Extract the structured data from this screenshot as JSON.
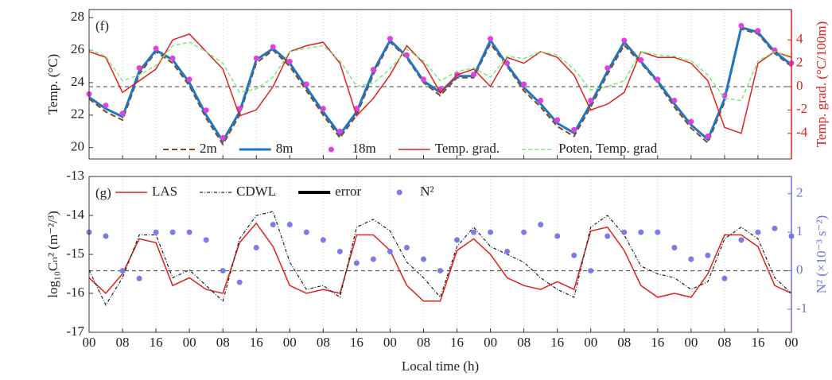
{
  "chart_data": [
    {
      "type": "line",
      "panel_label": "(f)",
      "ylabel": "Temp. (°C)",
      "y2label": "Temp. grad. (°C/100m)",
      "xlim": [
        0,
        168
      ],
      "xticks": [
        0,
        8,
        16,
        24,
        32,
        40,
        48,
        56,
        64,
        72,
        80,
        88,
        96,
        104,
        112,
        120,
        128,
        136,
        144,
        152,
        160,
        168
      ],
      "ylim": [
        19.3,
        28.5
      ],
      "yticks": [
        20,
        22,
        24,
        26,
        28
      ],
      "y2lim": [
        -6.2,
        6.6
      ],
      "y2ticks": [
        -4,
        -2,
        0,
        2,
        4
      ],
      "y2color": "#e0201b",
      "reference_line": {
        "axis": "y2",
        "value": 0
      },
      "grid": true,
      "legend_position": "lower center",
      "x": [
        0,
        4,
        8,
        12,
        16,
        20,
        24,
        28,
        32,
        36,
        40,
        44,
        48,
        52,
        56,
        60,
        64,
        68,
        72,
        76,
        80,
        84,
        88,
        92,
        96,
        100,
        104,
        108,
        112,
        116,
        120,
        124,
        128,
        132,
        136,
        140,
        144,
        148,
        152,
        156,
        160,
        164,
        168
      ],
      "series": [
        {
          "name": "2m",
          "color": "#8b4513",
          "dash": "7,4",
          "width": 2,
          "values": [
            23.0,
            22.2,
            21.7,
            24.5,
            25.9,
            25.2,
            23.8,
            21.8,
            20.2,
            22.0,
            25.2,
            26.0,
            25.0,
            23.5,
            22.0,
            20.6,
            22.0,
            24.5,
            26.5,
            25.5,
            24.0,
            23.2,
            24.3,
            24.3,
            26.4,
            25.0,
            23.5,
            22.5,
            21.3,
            20.7,
            22.5,
            24.5,
            26.3,
            25.2,
            24.0,
            22.5,
            21.2,
            20.3,
            22.8,
            27.3,
            27.0,
            25.8,
            25.0
          ]
        },
        {
          "name": "8m",
          "color": "#1f77c4",
          "width": 3,
          "values": [
            23.1,
            22.4,
            21.9,
            24.7,
            26.0,
            25.4,
            24.0,
            22.0,
            20.4,
            22.2,
            25.4,
            26.1,
            25.2,
            23.7,
            22.2,
            20.8,
            22.2,
            24.7,
            26.6,
            25.6,
            24.1,
            23.4,
            24.4,
            24.4,
            26.6,
            25.1,
            23.7,
            22.7,
            21.5,
            20.9,
            22.7,
            24.7,
            26.5,
            25.3,
            24.1,
            22.7,
            21.4,
            20.5,
            23.0,
            27.4,
            27.1,
            25.9,
            25.1
          ]
        },
        {
          "name": "18m",
          "color": "#e040e0",
          "marker": true,
          "values": [
            23.3,
            22.6,
            22.1,
            24.9,
            26.1,
            25.5,
            24.2,
            22.3,
            20.6,
            22.4,
            25.5,
            26.2,
            25.3,
            23.9,
            22.4,
            21.0,
            22.4,
            24.8,
            26.7,
            25.7,
            24.2,
            23.6,
            24.5,
            24.5,
            26.7,
            25.2,
            23.9,
            22.9,
            21.7,
            21.1,
            22.9,
            24.9,
            26.6,
            25.4,
            24.2,
            22.9,
            21.6,
            20.7,
            23.2,
            27.5,
            27.2,
            26.0,
            25.2
          ]
        },
        {
          "name": "Temp. grad.",
          "color": "#e0201b",
          "width": 1.5,
          "axis": "y2",
          "values": [
            3.0,
            2.5,
            -0.5,
            0.5,
            1.5,
            4.0,
            4.5,
            3.0,
            1.5,
            -2.5,
            -2.0,
            0.0,
            3.0,
            3.5,
            3.8,
            2.0,
            -2.5,
            -1.0,
            1.0,
            3.5,
            2.0,
            -0.5,
            1.0,
            1.5,
            0.0,
            2.5,
            2.0,
            3.0,
            2.5,
            1.0,
            -2.0,
            -1.5,
            -0.5,
            3.0,
            2.5,
            2.5,
            2.0,
            0.5,
            -3.5,
            -4.0,
            2.0,
            3.0,
            2.5
          ]
        },
        {
          "name": "Poten. Temp. grad",
          "color": "#7ee87e",
          "dash": "5,3",
          "width": 1.5,
          "axis": "y2",
          "values": [
            3.2,
            2.6,
            0.5,
            1.0,
            1.8,
            3.5,
            3.8,
            3.0,
            2.0,
            -0.5,
            -0.2,
            0.8,
            3.0,
            3.3,
            3.5,
            2.2,
            0.0,
            0.3,
            1.5,
            3.2,
            2.2,
            0.5,
            1.3,
            1.6,
            0.8,
            2.6,
            2.4,
            3.0,
            2.7,
            1.5,
            -0.3,
            0.0,
            0.5,
            3.0,
            2.7,
            2.6,
            2.2,
            1.0,
            -1.0,
            -1.2,
            2.2,
            3.0,
            2.6
          ]
        }
      ]
    },
    {
      "type": "line",
      "panel_label": "(g)",
      "ylabel": "log₁₀Cₙ² (m⁻²/³)",
      "y2label": "N² (×10⁻³ s⁻²)",
      "xlabel": "Local time (h)",
      "xlim": [
        0,
        168
      ],
      "xticks": [
        {
          "value": 0,
          "label": "00"
        },
        {
          "value": 8,
          "label": "08"
        },
        {
          "value": 16,
          "label": "16"
        },
        {
          "value": 24,
          "label": "00"
        },
        {
          "value": 32,
          "label": "08"
        },
        {
          "value": 40,
          "label": "16"
        },
        {
          "value": 48,
          "label": "00"
        },
        {
          "value": 56,
          "label": "08"
        },
        {
          "value": 64,
          "label": "16"
        },
        {
          "value": 72,
          "label": "00"
        },
        {
          "value": 80,
          "label": "08"
        },
        {
          "value": 88,
          "label": "16"
        },
        {
          "value": 96,
          "label": "00"
        },
        {
          "value": 104,
          "label": "08"
        },
        {
          "value": 112,
          "label": "16"
        },
        {
          "value": 120,
          "label": "00"
        },
        {
          "value": 128,
          "label": "08"
        },
        {
          "value": 136,
          "label": "16"
        },
        {
          "value": 144,
          "label": "00"
        },
        {
          "value": 152,
          "label": "08"
        },
        {
          "value": 160,
          "label": "16"
        },
        {
          "value": 168,
          "label": "00"
        }
      ],
      "ylim": [
        -17,
        -13
      ],
      "yticks": [
        -17,
        -16,
        -15,
        -14,
        -13
      ],
      "y2lim": [
        -1.6,
        2.45
      ],
      "y2ticks": [
        -1,
        0,
        1,
        2
      ],
      "y2color": "#6f6fe0",
      "reference_line": {
        "axis": "y2",
        "value": 0
      },
      "grid": true,
      "legend_position": "upper left",
      "x": [
        0,
        4,
        8,
        12,
        16,
        20,
        24,
        28,
        32,
        36,
        40,
        44,
        48,
        52,
        56,
        60,
        64,
        68,
        72,
        76,
        80,
        84,
        88,
        92,
        96,
        100,
        104,
        108,
        112,
        116,
        120,
        124,
        128,
        132,
        136,
        140,
        144,
        148,
        152,
        156,
        160,
        164,
        168
      ],
      "series": [
        {
          "name": "LAS",
          "color": "#e0201b",
          "width": 1.5,
          "values": [
            -15.6,
            -16.0,
            -15.5,
            -14.6,
            -14.7,
            -15.8,
            -15.6,
            -15.9,
            -16.0,
            -14.7,
            -14.2,
            -14.8,
            -15.8,
            -16.0,
            -15.9,
            -16.0,
            -14.5,
            -14.5,
            -14.9,
            -15.8,
            -16.2,
            -16.2,
            -14.9,
            -14.6,
            -15.0,
            -15.6,
            -15.8,
            -15.9,
            -15.7,
            -15.9,
            -14.4,
            -14.3,
            -14.9,
            -15.8,
            -16.1,
            -16.0,
            -16.1,
            -15.5,
            -14.5,
            -14.5,
            -14.8,
            -15.8,
            -16.0
          ]
        },
        {
          "name": "CDWL",
          "color": "#222222",
          "dash": "4,2,1,2",
          "width": 1.2,
          "values": [
            -15.4,
            -16.3,
            -15.6,
            -14.5,
            -14.5,
            -15.6,
            -15.4,
            -15.8,
            -16.2,
            -14.6,
            -14.0,
            -13.9,
            -15.2,
            -15.9,
            -15.8,
            -16.1,
            -14.3,
            -14.1,
            -14.4,
            -15.2,
            -15.6,
            -16.1,
            -14.8,
            -14.3,
            -14.8,
            -15.0,
            -15.2,
            -15.6,
            -15.9,
            -16.1,
            -14.3,
            -14.0,
            -14.5,
            -15.3,
            -15.5,
            -15.6,
            -15.9,
            -15.7,
            -14.6,
            -14.3,
            -14.6,
            -15.6,
            -16.0
          ]
        },
        {
          "name": "error",
          "color": "#000000",
          "width": 4,
          "values": [
            null,
            null,
            null,
            null,
            null,
            null,
            null,
            null,
            null,
            null,
            null,
            null,
            null,
            null,
            null,
            null,
            null,
            null,
            null,
            null,
            null,
            null,
            null,
            null,
            null,
            null,
            null,
            null,
            null,
            null,
            null,
            null,
            null,
            null,
            null,
            null,
            null,
            null,
            null,
            null,
            null,
            null,
            null
          ]
        },
        {
          "name": "N²",
          "color": "#7b7be8",
          "marker": true,
          "axis": "y2",
          "values": [
            1.0,
            0.9,
            0.0,
            -0.2,
            1.0,
            1.0,
            1.0,
            0.8,
            0.0,
            -0.3,
            0.6,
            1.2,
            1.2,
            1.0,
            0.8,
            0.5,
            0.2,
            0.3,
            0.5,
            0.6,
            0.3,
            0.0,
            0.8,
            1.0,
            1.0,
            0.5,
            1.0,
            1.2,
            0.9,
            0.4,
            0.0,
            0.9,
            1.0,
            1.0,
            1.0,
            0.6,
            0.3,
            0.4,
            -0.2,
            0.8,
            1.0,
            1.1,
            0.9
          ]
        }
      ]
    }
  ]
}
